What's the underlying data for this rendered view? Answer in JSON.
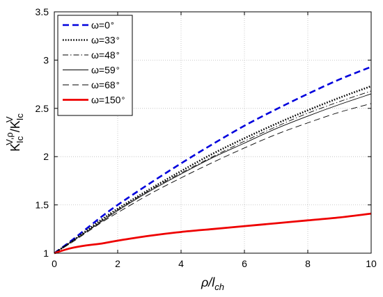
{
  "chart_data": {
    "type": "line",
    "title": "",
    "xlabel": {
      "main": "ρ/l",
      "sub": "ch"
    },
    "ylabel": {
      "k1": "K",
      "k1_sub": "Ic",
      "k1_sup": "V,ρ",
      "slash": "/",
      "k2": "K",
      "k2_sub": "Ic",
      "k2_sup": "V"
    },
    "xlim": [
      0,
      10
    ],
    "ylim": [
      1,
      3.5
    ],
    "xticks": [
      0,
      2,
      4,
      6,
      8,
      10
    ],
    "yticks": [
      1,
      1.5,
      2,
      2.5,
      3,
      3.5
    ],
    "xtick_labels": [
      "0",
      "2",
      "4",
      "6",
      "8",
      "10"
    ],
    "ytick_labels": [
      "1",
      "1.5",
      "2",
      "2.5",
      "3",
      "3.5"
    ],
    "grid": true,
    "legend_position": "top-left",
    "x": [
      0,
      0.5,
      1,
      1.5,
      2,
      3,
      4,
      5,
      6,
      7,
      8,
      9,
      10
    ],
    "series": [
      {
        "name": "ω=0°",
        "label_text": "ω=0",
        "label_degree": "∘",
        "color": "#0000dd",
        "style": "dashed",
        "values": [
          1.0,
          1.12,
          1.25,
          1.38,
          1.5,
          1.72,
          1.93,
          2.13,
          2.32,
          2.49,
          2.65,
          2.8,
          2.93
        ]
      },
      {
        "name": "ω=33°",
        "label_text": "ω=33",
        "label_degree": "∘",
        "color": "#000000",
        "style": "dotted",
        "values": [
          1.0,
          1.11,
          1.23,
          1.35,
          1.46,
          1.66,
          1.85,
          2.03,
          2.19,
          2.34,
          2.48,
          2.61,
          2.73
        ]
      },
      {
        "name": "ω=48°",
        "label_text": "ω=48",
        "label_degree": "∘",
        "color": "#000000",
        "style": "dashdot",
        "values": [
          1.0,
          1.11,
          1.22,
          1.34,
          1.45,
          1.65,
          1.83,
          2.0,
          2.16,
          2.31,
          2.45,
          2.57,
          2.68
        ]
      },
      {
        "name": "ω=59°",
        "label_text": "ω=59",
        "label_degree": "∘",
        "color": "#000000",
        "style": "solid",
        "values": [
          1.0,
          1.11,
          1.22,
          1.33,
          1.44,
          1.64,
          1.82,
          1.99,
          2.14,
          2.29,
          2.42,
          2.54,
          2.65
        ]
      },
      {
        "name": "ω=68°",
        "label_text": "ω=68",
        "label_degree": "∘",
        "color": "#000000",
        "style": "longdash",
        "values": [
          1.0,
          1.1,
          1.21,
          1.32,
          1.42,
          1.61,
          1.78,
          1.94,
          2.09,
          2.23,
          2.35,
          2.46,
          2.55
        ]
      },
      {
        "name": "ω=150°",
        "label_text": "ω=150",
        "label_degree": "∘",
        "color": "#ee0000",
        "style": "solid-thick",
        "values": [
          1.0,
          1.05,
          1.08,
          1.1,
          1.13,
          1.18,
          1.22,
          1.25,
          1.28,
          1.31,
          1.34,
          1.37,
          1.41
        ]
      }
    ]
  }
}
